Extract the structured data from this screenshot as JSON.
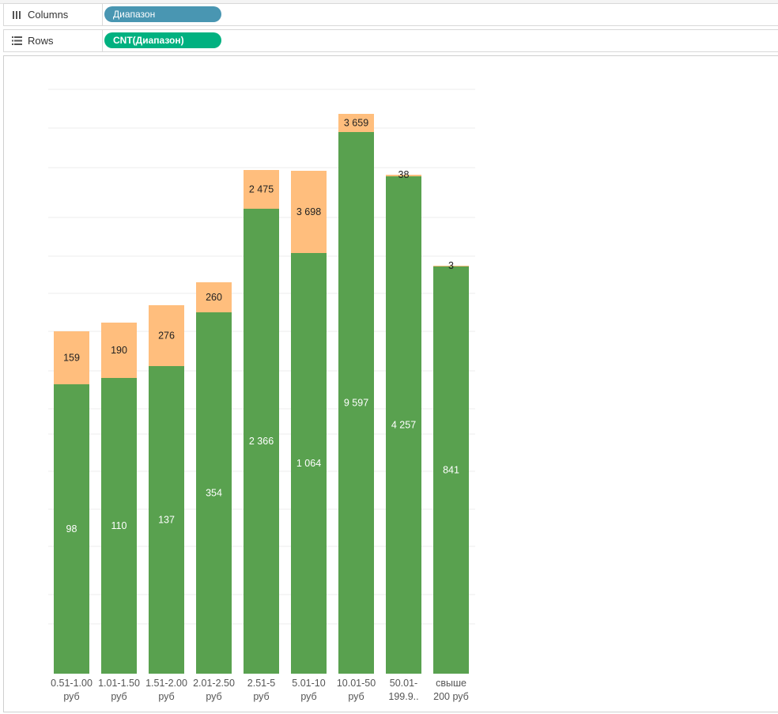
{
  "shelves": {
    "columns": {
      "label": "Columns",
      "pill": "Диапазон",
      "icon": "columns-icon"
    },
    "rows": {
      "label": "Rows",
      "pill": "CNT(Диапазон)",
      "icon": "rows-icon"
    }
  },
  "colors": {
    "primary_series": "#59a14f",
    "secondary_series": "#ffbe7d",
    "columns_pill": "#4996b2",
    "rows_pill": "#00b180"
  },
  "chart_data": {
    "type": "bar",
    "stacked": true,
    "grid": true,
    "categories": [
      [
        "0.51-1.00",
        "руб"
      ],
      [
        "1.01-1.50",
        "руб"
      ],
      [
        "1.51-2.00",
        "руб"
      ],
      [
        "2.01-2.50",
        "руб"
      ],
      [
        "2.51-5",
        "руб"
      ],
      [
        "5.01-10",
        "руб"
      ],
      [
        "10.01-50",
        "руб"
      ],
      [
        "50.01-",
        "199.9.."
      ],
      [
        "свыше",
        "200 руб"
      ]
    ],
    "series": [
      {
        "color": "#59a14f",
        "values": [
          98,
          110,
          137,
          354,
          2366,
          1064,
          9597,
          4257,
          841
        ],
        "labels": [
          "98",
          "110",
          "137",
          "354",
          "2 366",
          "1 064",
          "9 597",
          "4 257",
          "841"
        ]
      },
      {
        "color": "#ffbe7d",
        "values": [
          159,
          190,
          276,
          260,
          2475,
          3698,
          3659,
          38,
          3
        ],
        "labels": [
          "159",
          "190",
          "276",
          "260",
          "2 475",
          "3 698",
          "3 659",
          "38",
          "3"
        ]
      }
    ]
  }
}
